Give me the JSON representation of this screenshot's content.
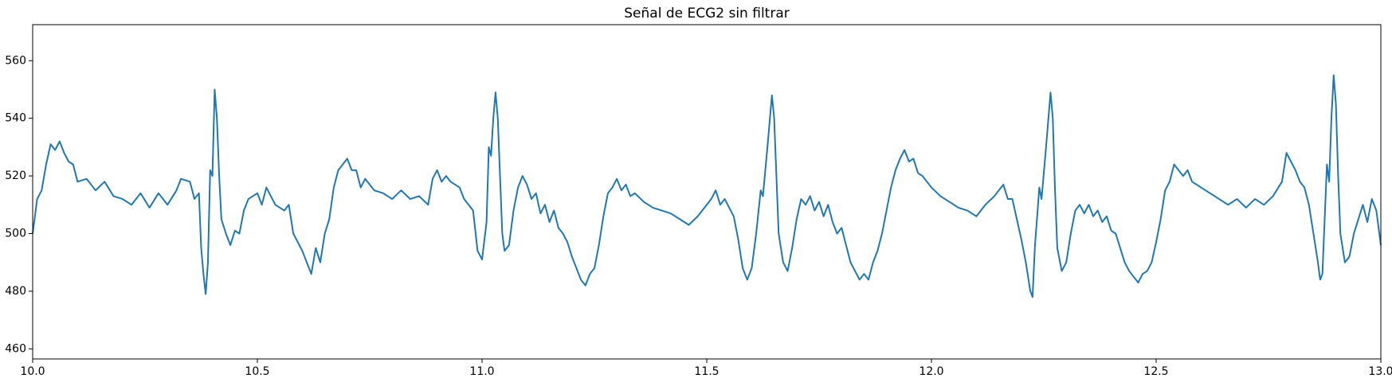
{
  "chart_data": {
    "type": "line",
    "title": "Señal de ECG2 sin filtrar",
    "color": "#1f77b4",
    "x": [
      10,
      10.01,
      10.02,
      10.03,
      10.04,
      10.05,
      10.06,
      10.07,
      10.08,
      10.09,
      10.1,
      10.12,
      10.14,
      10.16,
      10.18,
      10.2,
      10.22,
      10.24,
      10.26,
      10.28,
      10.3,
      10.32,
      10.33,
      10.35,
      10.36,
      10.37,
      10.375,
      10.38,
      10.385,
      10.39,
      10.395,
      10.4,
      10.405,
      10.41,
      10.415,
      10.42,
      10.43,
      10.44,
      10.45,
      10.46,
      10.47,
      10.48,
      10.5,
      10.51,
      10.52,
      10.54,
      10.56,
      10.57,
      10.58,
      10.6,
      10.61,
      10.62,
      10.63,
      10.64,
      10.65,
      10.66,
      10.67,
      10.68,
      10.69,
      10.7,
      10.71,
      10.72,
      10.73,
      10.74,
      10.76,
      10.78,
      10.8,
      10.82,
      10.84,
      10.86,
      10.88,
      10.89,
      10.9,
      10.91,
      10.92,
      10.93,
      10.95,
      10.96,
      10.98,
      10.99,
      11,
      11.01,
      11.015,
      11.02,
      11.025,
      11.03,
      11.035,
      11.04,
      11.045,
      11.05,
      11.06,
      11.07,
      11.08,
      11.09,
      11.1,
      11.11,
      11.12,
      11.13,
      11.14,
      11.15,
      11.16,
      11.17,
      11.18,
      11.19,
      11.2,
      11.21,
      11.22,
      11.23,
      11.24,
      11.25,
      11.26,
      11.27,
      11.28,
      11.29,
      11.3,
      11.31,
      11.32,
      11.33,
      11.34,
      11.36,
      11.38,
      11.4,
      11.42,
      11.44,
      11.46,
      11.48,
      11.5,
      11.51,
      11.52,
      11.53,
      11.54,
      11.56,
      11.57,
      11.58,
      11.59,
      11.6,
      11.61,
      11.62,
      11.625,
      11.635,
      11.645,
      11.65,
      11.655,
      11.66,
      11.67,
      11.68,
      11.69,
      11.7,
      11.71,
      11.72,
      11.73,
      11.74,
      11.75,
      11.76,
      11.77,
      11.78,
      11.79,
      11.8,
      11.81,
      11.82,
      11.83,
      11.84,
      11.85,
      11.86,
      11.87,
      11.88,
      11.89,
      11.9,
      11.91,
      11.92,
      11.93,
      11.94,
      11.95,
      11.96,
      11.97,
      11.98,
      12,
      12.02,
      12.04,
      12.06,
      12.08,
      12.1,
      12.12,
      12.14,
      12.16,
      12.17,
      12.18,
      12.19,
      12.2,
      12.21,
      12.22,
      12.225,
      12.23,
      12.24,
      12.245,
      12.255,
      12.265,
      12.27,
      12.275,
      12.28,
      12.29,
      12.3,
      12.31,
      12.32,
      12.33,
      12.34,
      12.35,
      12.36,
      12.37,
      12.38,
      12.39,
      12.4,
      12.41,
      12.42,
      12.43,
      12.44,
      12.45,
      12.46,
      12.47,
      12.48,
      12.49,
      12.5,
      12.51,
      12.52,
      12.53,
      12.54,
      12.55,
      12.56,
      12.57,
      12.58,
      12.6,
      12.62,
      12.64,
      12.66,
      12.68,
      12.7,
      12.72,
      12.74,
      12.76,
      12.78,
      12.79,
      12.8,
      12.81,
      12.82,
      12.83,
      12.84,
      12.85,
      12.86,
      12.865,
      12.87,
      12.875,
      12.88,
      12.885,
      12.89,
      12.895,
      12.9,
      12.905,
      12.91,
      12.92,
      12.93,
      12.94,
      12.95,
      12.96,
      12.97,
      12.98,
      12.99,
      13
    ],
    "values": [
      500,
      512,
      515,
      524,
      531,
      529,
      532,
      528,
      525,
      524,
      518,
      519,
      515,
      518,
      513,
      512,
      510,
      514,
      509,
      514,
      510,
      515,
      519,
      518,
      512,
      514,
      495,
      486,
      479,
      490,
      522,
      520,
      550,
      540,
      520,
      505,
      500,
      496,
      501,
      500,
      508,
      512,
      514,
      510,
      516,
      510,
      508,
      510,
      500,
      494,
      490,
      486,
      495,
      490,
      500,
      505,
      516,
      522,
      524,
      526,
      522,
      522,
      516,
      519,
      515,
      514,
      512,
      515,
      512,
      513,
      510,
      519,
      522,
      518,
      520,
      518,
      516,
      512,
      508,
      494,
      491,
      504,
      530,
      527,
      540,
      549,
      540,
      520,
      500,
      494,
      496,
      508,
      516,
      520,
      517,
      512,
      514,
      507,
      510,
      504,
      508,
      502,
      500,
      497,
      492,
      488,
      484,
      482,
      486,
      488,
      496,
      506,
      514,
      516,
      519,
      515,
      517,
      513,
      514,
      511,
      509,
      508,
      507,
      505,
      503,
      506,
      510,
      512,
      515,
      510,
      512,
      506,
      498,
      488,
      484,
      488,
      500,
      515,
      513,
      530,
      548,
      540,
      520,
      500,
      490,
      487,
      495,
      505,
      512,
      510,
      513,
      508,
      511,
      506,
      510,
      504,
      500,
      502,
      496,
      490,
      487,
      484,
      486,
      484,
      490,
      494,
      500,
      508,
      516,
      522,
      526,
      529,
      525,
      526,
      521,
      520,
      516,
      513,
      511,
      509,
      508,
      506,
      510,
      513,
      517,
      512,
      512,
      505,
      498,
      490,
      480,
      478,
      495,
      516,
      512,
      530,
      549,
      540,
      515,
      495,
      487,
      490,
      500,
      508,
      510,
      507,
      510,
      506,
      508,
      504,
      506,
      501,
      500,
      495,
      490,
      487,
      485,
      483,
      486,
      487,
      490,
      497,
      505,
      515,
      518,
      524,
      522,
      520,
      522,
      518,
      516,
      514,
      512,
      510,
      512,
      509,
      512,
      510,
      513,
      518,
      528,
      525,
      522,
      518,
      516,
      510,
      500,
      490,
      484,
      486,
      505,
      524,
      518,
      540,
      555,
      545,
      520,
      500,
      490,
      492,
      500,
      505,
      510,
      504,
      512,
      508,
      496
    ],
    "xlim": [
      10,
      13
    ],
    "xticks": [
      {
        "value": 10,
        "label": "10.0"
      },
      10.5,
      {
        "value": 11,
        "label": "11.0"
      },
      11.5,
      {
        "value": 12,
        "label": "12.0"
      },
      12.5,
      {
        "value": 13,
        "label": "13.0"
      }
    ],
    "ylim": [
      456.5,
      572.5
    ],
    "yticks": [
      460,
      480,
      500,
      520,
      540,
      560
    ]
  }
}
